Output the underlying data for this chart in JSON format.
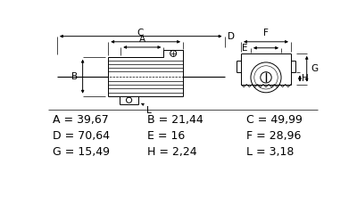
{
  "bg_color": "#ffffff",
  "text_color": "#000000",
  "line_color": "#000000",
  "dim_rows": [
    [
      [
        "A",
        "39,67"
      ],
      [
        "B",
        "21,44"
      ],
      [
        "C",
        "49,99"
      ]
    ],
    [
      [
        "D",
        "70,64"
      ],
      [
        "E",
        "16"
      ],
      [
        "F",
        "28,96"
      ]
    ],
    [
      [
        "G",
        "15,49"
      ],
      [
        "H",
        "2,24"
      ],
      [
        "L",
        "3,18"
      ]
    ]
  ],
  "font_size_dim": 9.0
}
